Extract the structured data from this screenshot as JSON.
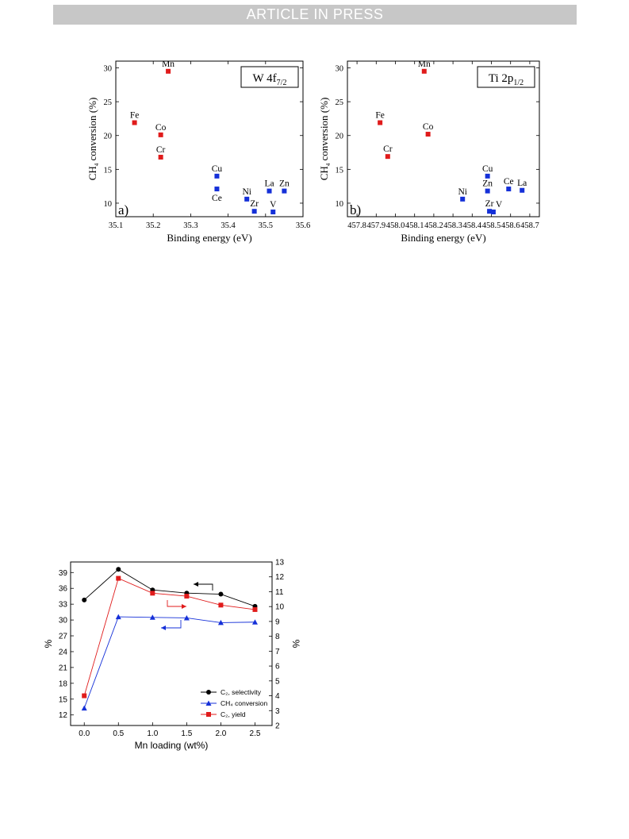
{
  "header": {
    "banner": "ARTICLE IN PRESS"
  },
  "colors": {
    "red": "#e01b1b",
    "blue": "#1530d8",
    "black": "#000000"
  },
  "chart_data": [
    {
      "type": "scatter",
      "panel_label": "a)",
      "box_label": {
        "main": "W 4f",
        "sub": "7/2"
      },
      "xlabel": "Binding energy (eV)",
      "ylabel": {
        "pre": "CH",
        "sub": "4",
        "post": " conversion (%)"
      },
      "xlim": [
        35.1,
        35.6
      ],
      "ylim": [
        8,
        31
      ],
      "xticks": [
        "35.1",
        "35.2",
        "35.3",
        "35.4",
        "35.5",
        "35.6"
      ],
      "yticks": [
        "10",
        "15",
        "20",
        "25",
        "30"
      ],
      "points": [
        {
          "label": "Mn",
          "x": 35.24,
          "y": 29.5,
          "color": "red",
          "lpos": "above"
        },
        {
          "label": "Fe",
          "x": 35.15,
          "y": 21.9,
          "color": "red",
          "lpos": "above"
        },
        {
          "label": "Co",
          "x": 35.22,
          "y": 20.1,
          "color": "red",
          "lpos": "above"
        },
        {
          "label": "Cr",
          "x": 35.22,
          "y": 16.8,
          "color": "red",
          "lpos": "above"
        },
        {
          "label": "Cu",
          "x": 35.37,
          "y": 14.0,
          "color": "blue",
          "lpos": "above"
        },
        {
          "label": "Ce",
          "x": 35.37,
          "y": 12.1,
          "color": "blue",
          "lpos": "below"
        },
        {
          "label": "Ni",
          "x": 35.45,
          "y": 10.6,
          "color": "blue",
          "lpos": "above"
        },
        {
          "label": "La",
          "x": 35.51,
          "y": 11.8,
          "color": "blue",
          "lpos": "above"
        },
        {
          "label": "Zn",
          "x": 35.55,
          "y": 11.8,
          "color": "blue",
          "lpos": "above"
        },
        {
          "label": "Zr",
          "x": 35.47,
          "y": 8.8,
          "color": "blue",
          "lpos": "above"
        },
        {
          "label": "V",
          "x": 35.52,
          "y": 8.7,
          "color": "blue",
          "lpos": "above"
        }
      ]
    },
    {
      "type": "scatter",
      "panel_label": "b)",
      "box_label": {
        "main": "Ti 2p",
        "sub": "1/2"
      },
      "xlabel": "Binding energy (eV)",
      "ylabel": {
        "pre": "CH",
        "sub": "4",
        "post": " conversion (%)"
      },
      "xlim": [
        457.75,
        458.75
      ],
      "ylim": [
        8,
        31
      ],
      "xticks": [
        "457.8",
        "457.9",
        "458.0",
        "458.1",
        "458.2",
        "458.3",
        "458.4",
        "458.5",
        "458.6",
        "458.7"
      ],
      "yticks": [
        "10",
        "15",
        "20",
        "25",
        "30"
      ],
      "points": [
        {
          "label": "Mn",
          "x": 458.15,
          "y": 29.5,
          "color": "red",
          "lpos": "above"
        },
        {
          "label": "Fe",
          "x": 457.92,
          "y": 21.9,
          "color": "red",
          "lpos": "above"
        },
        {
          "label": "Co",
          "x": 458.17,
          "y": 20.2,
          "color": "red",
          "lpos": "above"
        },
        {
          "label": "Cr",
          "x": 457.96,
          "y": 16.9,
          "color": "red",
          "lpos": "above"
        },
        {
          "label": "Ni",
          "x": 458.35,
          "y": 10.6,
          "color": "blue",
          "lpos": "above"
        },
        {
          "label": "Cu",
          "x": 458.48,
          "y": 14.0,
          "color": "blue",
          "lpos": "above"
        },
        {
          "label": "Zn",
          "x": 458.48,
          "y": 11.8,
          "color": "blue",
          "lpos": "above"
        },
        {
          "label": "Ce",
          "x": 458.59,
          "y": 12.1,
          "color": "blue",
          "lpos": "above"
        },
        {
          "label": "La",
          "x": 458.66,
          "y": 11.9,
          "color": "blue",
          "lpos": "above"
        },
        {
          "label": "Zr",
          "x": 458.49,
          "y": 8.8,
          "color": "blue",
          "lpos": "above"
        },
        {
          "label": "V",
          "x": 458.51,
          "y": 8.7,
          "color": "blue",
          "lpos": "aboveright"
        }
      ]
    },
    {
      "type": "line",
      "xlabel": "Mn loading (wt%)",
      "ylabel_left": "%",
      "ylabel_right": "%",
      "xlim": [
        -0.2,
        2.75
      ],
      "ylim_left": [
        10,
        41
      ],
      "ylim_right": [
        2,
        13
      ],
      "xticks": [
        "0.0",
        "0.5",
        "1.0",
        "1.5",
        "2.0",
        "2.5"
      ],
      "yticks_left": [
        "12",
        "15",
        "18",
        "21",
        "24",
        "27",
        "30",
        "33",
        "36",
        "39"
      ],
      "yticks_right": [
        "2",
        "3",
        "4",
        "5",
        "6",
        "7",
        "8",
        "9",
        "10",
        "11",
        "12",
        "13"
      ],
      "x": [
        0.0,
        0.5,
        1.0,
        1.5,
        2.0,
        2.5
      ],
      "series": [
        {
          "name": "C₂, selectivity",
          "axis": "left",
          "color": "black",
          "marker": "circle",
          "values": [
            33.8,
            39.6,
            35.7,
            35.1,
            34.9,
            32.6
          ]
        },
        {
          "name": "CH₄ conversion",
          "axis": "left",
          "color": "blue",
          "marker": "triangle",
          "values": [
            13.3,
            30.6,
            30.5,
            30.4,
            29.5,
            29.6
          ]
        },
        {
          "name": "C₂, yield",
          "axis": "right",
          "color": "red",
          "marker": "square",
          "values": [
            4.0,
            11.9,
            10.9,
            10.7,
            10.1,
            9.8
          ]
        }
      ]
    }
  ]
}
